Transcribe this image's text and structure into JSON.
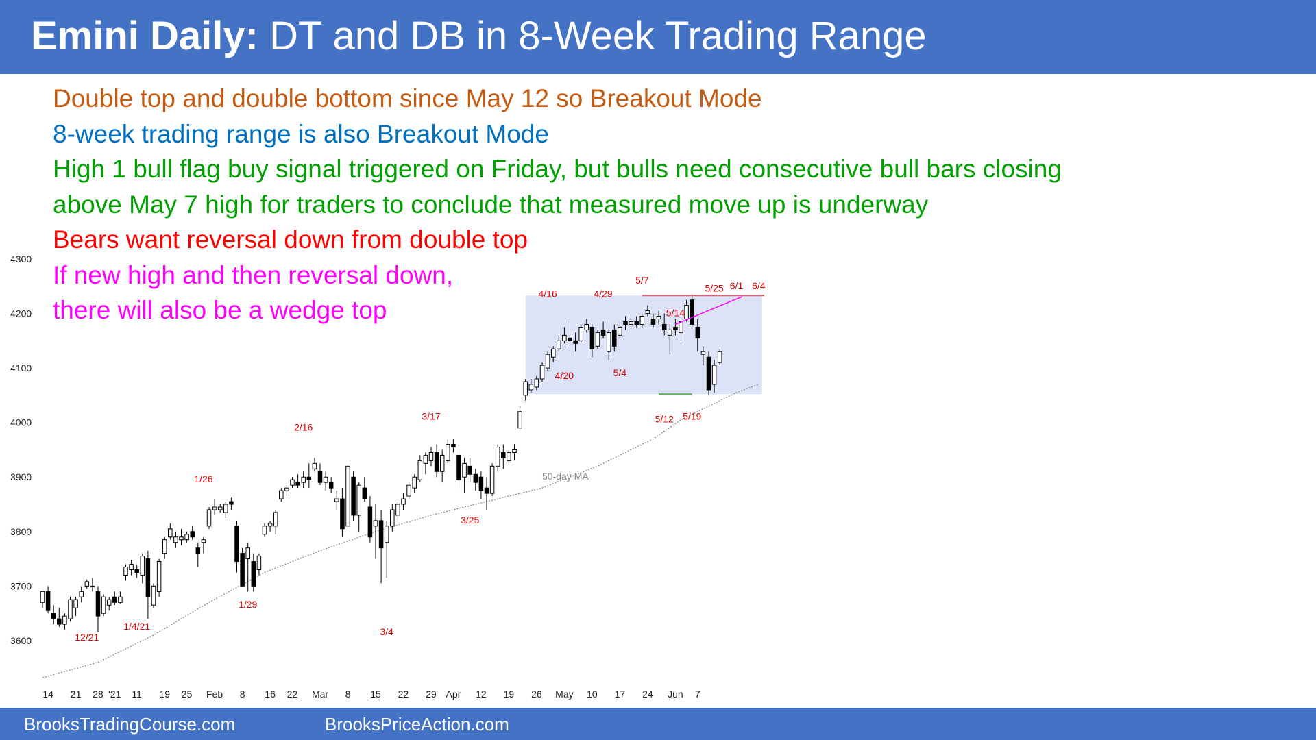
{
  "header": {
    "title_bold": "Emini Daily:",
    "title_rest": " DT and DB in 8-Week Trading Range",
    "background": "#4472c4"
  },
  "notes": [
    {
      "text": "Double top and double bottom since May 12 so Breakout Mode",
      "color": "#c55a11"
    },
    {
      "text": "8-week trading range is also Breakout Mode",
      "color": "#0070c0"
    },
    {
      "text": "High 1 bull flag buy signal triggered on Friday, but bulls need consecutive bull bars closing",
      "color": "#00a000"
    },
    {
      "text": "above May 7 high for traders to conclude that measured move up is underway",
      "color": "#00a000"
    },
    {
      "text": "Bears want reversal down from double top",
      "color": "#ff0000"
    },
    {
      "text": "If new high and then reversal down,",
      "color": "#ff00ff"
    },
    {
      "text": "there will also be a wedge top",
      "color": "#ff00ff"
    }
  ],
  "footer": {
    "left": "BrooksTradingCourse.com",
    "right": "BrooksPriceAction.com"
  },
  "chart_data": {
    "type": "candlestick",
    "ylim": [
      3520,
      4300
    ],
    "yticks": [
      3600,
      3700,
      3800,
      3900,
      4000,
      4100,
      4200,
      4300
    ],
    "xticks": [
      {
        "label": "14",
        "i": 1
      },
      {
        "label": "21",
        "i": 6
      },
      {
        "label": "28",
        "i": 10
      },
      {
        "label": "'21",
        "i": 13
      },
      {
        "label": "11",
        "i": 17
      },
      {
        "label": "19",
        "i": 22
      },
      {
        "label": "25",
        "i": 26
      },
      {
        "label": "Feb",
        "i": 31
      },
      {
        "label": "8",
        "i": 36
      },
      {
        "label": "16",
        "i": 41
      },
      {
        "label": "22",
        "i": 45
      },
      {
        "label": "Mar",
        "i": 50
      },
      {
        "label": "8",
        "i": 55
      },
      {
        "label": "15",
        "i": 60
      },
      {
        "label": "22",
        "i": 65
      },
      {
        "label": "29",
        "i": 70
      },
      {
        "label": "Apr",
        "i": 74
      },
      {
        "label": "12",
        "i": 79
      },
      {
        "label": "19",
        "i": 84
      },
      {
        "label": "26",
        "i": 89
      },
      {
        "label": "May",
        "i": 94
      },
      {
        "label": "10",
        "i": 99
      },
      {
        "label": "17",
        "i": 104
      },
      {
        "label": "24",
        "i": 109
      },
      {
        "label": "Jun",
        "i": 114
      },
      {
        "label": "7",
        "i": 118
      }
    ],
    "candles": [
      [
        3670,
        3690,
        3660,
        3690
      ],
      [
        3690,
        3700,
        3650,
        3655
      ],
      [
        3650,
        3665,
        3630,
        3640
      ],
      [
        3640,
        3660,
        3625,
        3630
      ],
      [
        3630,
        3650,
        3620,
        3645
      ],
      [
        3640,
        3680,
        3635,
        3675
      ],
      [
        3660,
        3680,
        3645,
        3675
      ],
      [
        3680,
        3700,
        3670,
        3690
      ],
      [
        3700,
        3712,
        3695,
        3708
      ],
      [
        3700,
        3715,
        3690,
        3700
      ],
      [
        3690,
        3700,
        3615,
        3645
      ],
      [
        3650,
        3685,
        3645,
        3680
      ],
      [
        3665,
        3680,
        3655,
        3675
      ],
      [
        3680,
        3690,
        3665,
        3670
      ],
      [
        3670,
        3690,
        3668,
        3680
      ],
      [
        3720,
        3740,
        3710,
        3735
      ],
      [
        3730,
        3748,
        3720,
        3740
      ],
      [
        3730,
        3740,
        3715,
        3725
      ],
      [
        3720,
        3760,
        3705,
        3755
      ],
      [
        3750,
        3765,
        3640,
        3680
      ],
      [
        3665,
        3705,
        3660,
        3700
      ],
      [
        3690,
        3750,
        3680,
        3745
      ],
      [
        3760,
        3790,
        3750,
        3785
      ],
      [
        3790,
        3815,
        3785,
        3805
      ],
      [
        3780,
        3800,
        3770,
        3790
      ],
      [
        3785,
        3805,
        3775,
        3790
      ],
      [
        3785,
        3800,
        3780,
        3795
      ],
      [
        3800,
        3810,
        3785,
        3790
      ],
      [
        3770,
        3780,
        3735,
        3760
      ],
      [
        3780,
        3790,
        3760,
        3785
      ],
      [
        3810,
        3845,
        3805,
        3840
      ],
      [
        3840,
        3860,
        3830,
        3845
      ],
      [
        3840,
        3850,
        3835,
        3845
      ],
      [
        3835,
        3855,
        3825,
        3850
      ],
      [
        3855,
        3862,
        3840,
        3850
      ],
      [
        3810,
        3820,
        3725,
        3745
      ],
      [
        3760,
        3770,
        3700,
        3700
      ],
      [
        3750,
        3780,
        3690,
        3770
      ],
      [
        3745,
        3760,
        3690,
        3700
      ],
      [
        3730,
        3760,
        3720,
        3755
      ],
      [
        3795,
        3815,
        3790,
        3810
      ],
      [
        3810,
        3820,
        3800,
        3815
      ],
      [
        3810,
        3840,
        3795,
        3835
      ],
      [
        3860,
        3880,
        3855,
        3875
      ],
      [
        3875,
        3885,
        3865,
        3880
      ],
      [
        3885,
        3900,
        3880,
        3895
      ],
      [
        3890,
        3905,
        3880,
        3885
      ],
      [
        3890,
        3910,
        3880,
        3900
      ],
      [
        3900,
        3925,
        3880,
        3895
      ],
      [
        3915,
        3935,
        3910,
        3925
      ],
      [
        3910,
        3925,
        3885,
        3890
      ],
      [
        3890,
        3910,
        3875,
        3900
      ],
      [
        3890,
        3900,
        3870,
        3880
      ],
      [
        3855,
        3875,
        3840,
        3860
      ],
      [
        3860,
        3880,
        3790,
        3805
      ],
      [
        3810,
        3925,
        3805,
        3920
      ],
      [
        3900,
        3910,
        3820,
        3830
      ],
      [
        3830,
        3890,
        3800,
        3885
      ],
      [
        3880,
        3900,
        3855,
        3860
      ],
      [
        3845,
        3865,
        3780,
        3790
      ],
      [
        3810,
        3850,
        3750,
        3820
      ],
      [
        3820,
        3840,
        3705,
        3770
      ],
      [
        3780,
        3820,
        3715,
        3810
      ],
      [
        3810,
        3850,
        3800,
        3840
      ],
      [
        3830,
        3855,
        3820,
        3850
      ],
      [
        3850,
        3870,
        3840,
        3860
      ],
      [
        3865,
        3890,
        3860,
        3885
      ],
      [
        3880,
        3905,
        3870,
        3900
      ],
      [
        3895,
        3940,
        3890,
        3930
      ],
      [
        3925,
        3945,
        3905,
        3940
      ],
      [
        3930,
        3955,
        3920,
        3945
      ],
      [
        3945,
        3960,
        3900,
        3910
      ],
      [
        3910,
        3950,
        3890,
        3940
      ],
      [
        3930,
        3970,
        3925,
        3960
      ],
      [
        3960,
        3970,
        3945,
        3955
      ],
      [
        3940,
        3960,
        3880,
        3895
      ],
      [
        3900,
        3935,
        3870,
        3925
      ],
      [
        3920,
        3935,
        3890,
        3905
      ],
      [
        3905,
        3915,
        3875,
        3890
      ],
      [
        3900,
        3910,
        3860,
        3875
      ],
      [
        3880,
        3900,
        3840,
        3870
      ],
      [
        3870,
        3925,
        3865,
        3920
      ],
      [
        3920,
        3960,
        3910,
        3955
      ],
      [
        3945,
        3960,
        3915,
        3935
      ],
      [
        3930,
        3950,
        3925,
        3945
      ],
      [
        3945,
        3960,
        3930,
        3950
      ],
      [
        3990,
        4030,
        3985,
        4020
      ],
      [
        4050,
        4080,
        4040,
        4075
      ],
      [
        4060,
        4080,
        4055,
        4070
      ],
      [
        4065,
        4085,
        4060,
        4080
      ],
      [
        4080,
        4110,
        4075,
        4105
      ],
      [
        4100,
        4130,
        4095,
        4125
      ],
      [
        4120,
        4140,
        4110,
        4135
      ],
      [
        4135,
        4160,
        4130,
        4150
      ],
      [
        4150,
        4175,
        4145,
        4160
      ],
      [
        4155,
        4185,
        4140,
        4150
      ],
      [
        4150,
        4165,
        4130,
        4145
      ],
      [
        4150,
        4180,
        4145,
        4175
      ],
      [
        4170,
        4190,
        4165,
        4180
      ],
      [
        4175,
        4180,
        4120,
        4135
      ],
      [
        4140,
        4170,
        4135,
        4165
      ],
      [
        4170,
        4185,
        4155,
        4160
      ],
      [
        4130,
        4170,
        4115,
        4165
      ],
      [
        4170,
        4180,
        4130,
        4140
      ],
      [
        4160,
        4185,
        4155,
        4175
      ],
      [
        4185,
        4195,
        4170,
        4180
      ],
      [
        4180,
        4190,
        4175,
        4185
      ],
      [
        4185,
        4195,
        4175,
        4180
      ],
      [
        4180,
        4200,
        4175,
        4195
      ],
      [
        4200,
        4215,
        4195,
        4205
      ],
      [
        4190,
        4200,
        4175,
        4180
      ],
      [
        4190,
        4205,
        4180,
        4195
      ],
      [
        4180,
        4200,
        4160,
        4170
      ],
      [
        4160,
        4180,
        4125,
        4170
      ],
      [
        4175,
        4190,
        4160,
        4170
      ],
      [
        4165,
        4190,
        4150,
        4185
      ],
      [
        4190,
        4225,
        4185,
        4215
      ],
      [
        4225,
        4235,
        4175,
        4180
      ],
      [
        4175,
        4190,
        4130,
        4155
      ],
      [
        4125,
        4140,
        4105,
        4130
      ],
      [
        4120,
        4130,
        4050,
        4060
      ],
      [
        4070,
        4115,
        4055,
        4105
      ],
      [
        4110,
        4135,
        4105,
        4130
      ]
    ],
    "ma_label": "50-day MA",
    "ma": [
      [
        0,
        3532
      ],
      [
        10,
        3560
      ],
      [
        20,
        3610
      ],
      [
        30,
        3670
      ],
      [
        40,
        3725
      ],
      [
        50,
        3765
      ],
      [
        60,
        3800
      ],
      [
        70,
        3830
      ],
      [
        80,
        3855
      ],
      [
        90,
        3880
      ],
      [
        100,
        3920
      ],
      [
        110,
        3970
      ],
      [
        115,
        4005
      ],
      [
        120,
        4030
      ],
      [
        125,
        4055
      ],
      [
        129,
        4070
      ]
    ],
    "annotations": [
      {
        "label": "12/21",
        "i": 8,
        "y": 3600
      },
      {
        "label": "1/4/21",
        "i": 17,
        "y": 3620
      },
      {
        "label": "1/26",
        "i": 29,
        "y": 3890
      },
      {
        "label": "1/29",
        "i": 37,
        "y": 3660
      },
      {
        "label": "2/16",
        "i": 47,
        "y": 3985
      },
      {
        "label": "3/4",
        "i": 62,
        "y": 3610
      },
      {
        "label": "3/17",
        "i": 70,
        "y": 4005
      },
      {
        "label": "3/25",
        "i": 77,
        "y": 3815
      },
      {
        "label": "4/16",
        "i": 91,
        "y": 4230
      },
      {
        "label": "4/20",
        "i": 94,
        "y": 4080
      },
      {
        "label": "4/29",
        "i": 101,
        "y": 4230
      },
      {
        "label": "5/4",
        "i": 104,
        "y": 4085
      },
      {
        "label": "5/7",
        "i": 108,
        "y": 4255
      },
      {
        "label": "5/12",
        "i": 112,
        "y": 4000
      },
      {
        "label": "5/14",
        "i": 114,
        "y": 4195
      },
      {
        "label": "5/19",
        "i": 117,
        "y": 4005
      },
      {
        "label": "5/25",
        "i": 121,
        "y": 4240
      },
      {
        "label": "6/1",
        "i": 125,
        "y": 4245
      },
      {
        "label": "6/4",
        "i": 129,
        "y": 4245
      }
    ],
    "range_box": {
      "i_start": 87,
      "i_end": 129.6,
      "y_low": 4052,
      "y_high": 4233,
      "fill": "#dce3f7"
    },
    "resistance_line": {
      "y": 4233,
      "i_start": 108,
      "i_end": 130,
      "color": "#e06070"
    },
    "support_line": {
      "y": 4052,
      "i_start": 111,
      "i_end": 117,
      "color": "#60b060"
    },
    "wedge_line": {
      "points": [
        [
          114,
          4180
        ],
        [
          126,
          4231
        ]
      ],
      "color": "#ff00ff"
    }
  }
}
